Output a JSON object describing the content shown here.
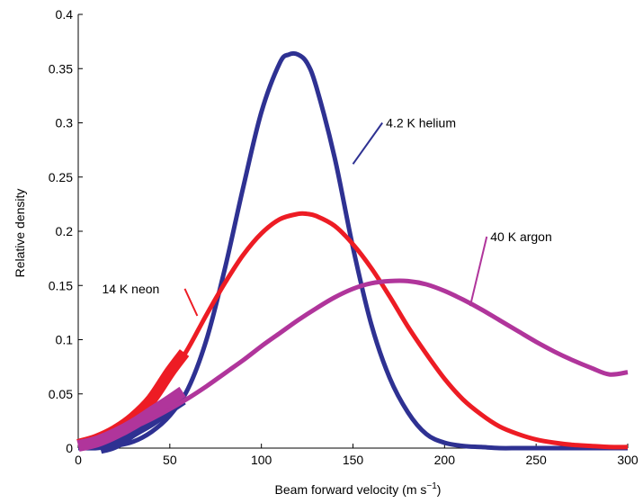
{
  "chart_data": {
    "type": "line",
    "title": "",
    "xlabel": "Beam forward velocity (m s",
    "xlabel_sup": "−1",
    "xlabel_close": ")",
    "ylabel": "Relative density",
    "xlim": [
      0,
      300
    ],
    "ylim": [
      0,
      0.4
    ],
    "xticks": [
      0,
      50,
      100,
      150,
      200,
      250,
      300
    ],
    "yticks": [
      0,
      0.05,
      0.1,
      0.15,
      0.2,
      0.25,
      0.3,
      0.35,
      0.4
    ],
    "xtick_labels": [
      "0",
      "50",
      "100",
      "150",
      "200",
      "250",
      "300"
    ],
    "ytick_labels": [
      "0",
      "0.05",
      "0.1",
      "0.15",
      "0.2",
      "0.25",
      "0.3",
      "0.35",
      "0.4"
    ],
    "grid": false,
    "legend": "none (inline annotations)",
    "series": [
      {
        "name": "4.2 K helium",
        "color": "#2e3192",
        "x": [
          0,
          10,
          20,
          30,
          40,
          50,
          60,
          70,
          80,
          90,
          100,
          110,
          115,
          120,
          125,
          130,
          140,
          150,
          160,
          170,
          180,
          190,
          200,
          210,
          220,
          230,
          240,
          250,
          260,
          270,
          280,
          290,
          300
        ],
        "y": [
          0.0,
          0.0,
          0.002,
          0.006,
          0.015,
          0.03,
          0.055,
          0.1,
          0.165,
          0.24,
          0.31,
          0.355,
          0.363,
          0.363,
          0.355,
          0.333,
          0.268,
          0.185,
          0.114,
          0.065,
          0.033,
          0.013,
          0.005,
          0.002,
          0.001,
          0.0,
          0.0,
          0.0,
          0.0,
          0.0,
          0.0,
          0.0,
          0.0
        ],
        "thick_start": [
          [
            12,
            0.0
          ],
          [
            20,
            0.004
          ],
          [
            30,
            0.015
          ],
          [
            40,
            0.025
          ],
          [
            50,
            0.037
          ],
          [
            57,
            0.045
          ]
        ],
        "annotation": {
          "text": "4.2 K helium",
          "at": [
            150,
            0.262
          ],
          "label": [
            168,
            0.3
          ]
        }
      },
      {
        "name": "14 K neon",
        "color": "#ed1c24",
        "x": [
          0,
          10,
          20,
          30,
          40,
          50,
          60,
          70,
          80,
          90,
          100,
          110,
          120,
          125,
          130,
          140,
          150,
          160,
          170,
          180,
          190,
          200,
          210,
          220,
          230,
          240,
          250,
          260,
          270,
          280,
          290,
          300
        ],
        "y": [
          0.005,
          0.01,
          0.017,
          0.027,
          0.043,
          0.065,
          0.092,
          0.123,
          0.152,
          0.178,
          0.198,
          0.211,
          0.216,
          0.216,
          0.214,
          0.205,
          0.188,
          0.166,
          0.14,
          0.112,
          0.087,
          0.064,
          0.045,
          0.031,
          0.02,
          0.013,
          0.008,
          0.005,
          0.003,
          0.002,
          0.001,
          0.001
        ],
        "thick_start": [
          [
            0,
            0.003
          ],
          [
            10,
            0.008
          ],
          [
            20,
            0.016
          ],
          [
            30,
            0.028
          ],
          [
            40,
            0.045
          ],
          [
            50,
            0.07
          ],
          [
            58,
            0.088
          ]
        ],
        "annotation": {
          "text": "14 K neon",
          "at": [
            65,
            0.122
          ],
          "label": [
            13,
            0.147
          ]
        }
      },
      {
        "name": "40 K argon",
        "color": "#b0359b",
        "x": [
          0,
          10,
          20,
          30,
          40,
          50,
          60,
          70,
          80,
          90,
          100,
          110,
          120,
          130,
          140,
          150,
          160,
          170,
          180,
          190,
          200,
          210,
          220,
          230,
          240,
          250,
          260,
          270,
          280,
          290,
          300
        ],
        "y": [
          0.002,
          0.006,
          0.012,
          0.019,
          0.027,
          0.036,
          0.046,
          0.057,
          0.069,
          0.081,
          0.094,
          0.106,
          0.118,
          0.129,
          0.139,
          0.147,
          0.152,
          0.154,
          0.154,
          0.151,
          0.145,
          0.137,
          0.128,
          0.118,
          0.108,
          0.098,
          0.089,
          0.081,
          0.074,
          0.068,
          0.07
        ],
        "thick_start": [
          [
            0,
            0.002
          ],
          [
            10,
            0.006
          ],
          [
            20,
            0.013
          ],
          [
            30,
            0.022
          ],
          [
            40,
            0.033
          ],
          [
            50,
            0.044
          ],
          [
            57,
            0.052
          ]
        ],
        "annotation": {
          "text": "40 K argon",
          "at": [
            214,
            0.131
          ],
          "label": [
            225,
            0.195
          ]
        }
      }
    ]
  }
}
